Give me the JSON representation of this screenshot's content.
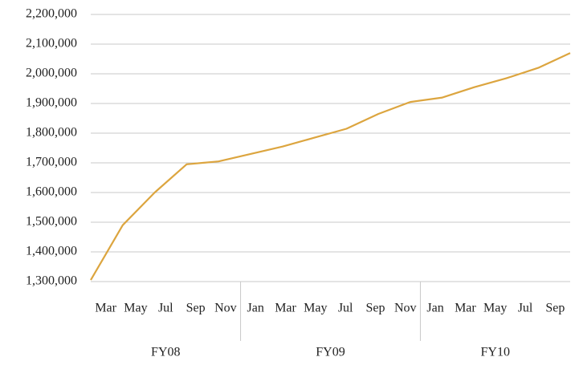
{
  "chart_data": {
    "type": "line",
    "groups": [
      {
        "name": "FY08",
        "categories": [
          "Mar",
          "May",
          "Jul",
          "Sep",
          "Nov"
        ]
      },
      {
        "name": "FY09",
        "categories": [
          "Jan",
          "Mar",
          "May",
          "Jul",
          "Sep",
          "Nov"
        ]
      },
      {
        "name": "FY10",
        "categories": [
          "Jan",
          "Mar",
          "May",
          "Jul",
          "Sep"
        ]
      }
    ],
    "values": [
      1305000,
      1490000,
      1600000,
      1695000,
      1705000,
      1730000,
      1755000,
      1785000,
      1815000,
      1865000,
      1905000,
      1920000,
      1955000,
      1985000,
      2020000,
      2070000
    ],
    "color": "#dca53f",
    "ylim": [
      1300000,
      2200000
    ],
    "yticks": [
      {
        "value": 1300000,
        "label": "1,300,000"
      },
      {
        "value": 1400000,
        "label": "1,400,000"
      },
      {
        "value": 1500000,
        "label": "1,500,000"
      },
      {
        "value": 1600000,
        "label": "1,600,000"
      },
      {
        "value": 1700000,
        "label": "1,700,000"
      },
      {
        "value": 1800000,
        "label": "1,800,000"
      },
      {
        "value": 1900000,
        "label": "1,900,000"
      },
      {
        "value": 2000000,
        "label": "2,000,000"
      },
      {
        "value": 2100000,
        "label": "2,100,000"
      },
      {
        "value": 2200000,
        "label": "2,200,000"
      }
    ],
    "grid": true
  }
}
